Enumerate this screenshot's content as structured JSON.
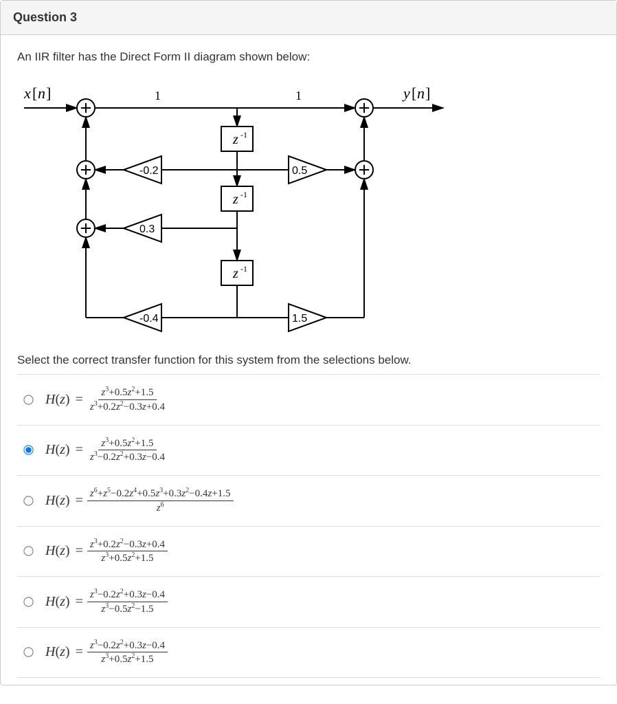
{
  "colors": {
    "border": "#cccccc",
    "header_bg": "#f5f5f5",
    "divider": "#dddddd",
    "text": "#333333"
  },
  "question": {
    "title": "Question 3",
    "prompt": "An IIR filter has the Direct Form II diagram shown below:",
    "select_text": "Select the correct transfer function for this system from the selections below."
  },
  "diagram": {
    "input_label": "x[n]",
    "output_label": "y[n]",
    "top_gains": [
      "1",
      "1"
    ],
    "delay_label": "z",
    "delay_exp": "-1",
    "left_gains": [
      "-0.2",
      "0.3",
      "-0.4"
    ],
    "right_gains": [
      "0.5",
      "",
      "1.5"
    ],
    "stroke": "#000000",
    "stroke_width": 2
  },
  "options": [
    {
      "id": "opt1",
      "selected": false,
      "numerator": "<i>z</i><sup>3</sup>+0.5<i>z</i><sup>2</sup>+1.5",
      "denominator": "<i>z</i><sup>3</sup>+0.2<i>z</i><sup>2</sup>−0.3<i>z</i>+0.4"
    },
    {
      "id": "opt2",
      "selected": true,
      "numerator": "<i>z</i><sup>3</sup>+0.5<i>z</i><sup>2</sup>+1.5",
      "denominator": "<i>z</i><sup>3</sup>−0.2<i>z</i><sup>2</sup>+0.3<i>z</i>−0.4"
    },
    {
      "id": "opt3",
      "selected": false,
      "numerator": "<i>z</i><sup>6</sup>+<i>z</i><sup>5</sup>−0.2<i>z</i><sup>4</sup>+0.5<i>z</i><sup>3</sup>+0.3<i>z</i><sup>2</sup>−0.4<i>z</i>+1.5",
      "denominator": "<i>z</i><sup>6</sup>"
    },
    {
      "id": "opt4",
      "selected": false,
      "numerator": "<i>z</i><sup>3</sup>+0.2<i>z</i><sup>2</sup>−0.3<i>z</i>+0.4",
      "denominator": "<i>z</i><sup>3</sup>+0.5<i>z</i><sup>2</sup>+1.5"
    },
    {
      "id": "opt5",
      "selected": false,
      "numerator": "<i>z</i><sup>3</sup>−0.2<i>z</i><sup>2</sup>+0.3<i>z</i>−0.4",
      "denominator": "<i>z</i><sup>3</sup>−0.5<i>z</i><sup>2</sup>−1.5"
    },
    {
      "id": "opt6",
      "selected": false,
      "numerator": "<i>z</i><sup>3</sup>−0.2<i>z</i><sup>2</sup>+0.3<i>z</i>−0.4",
      "denominator": "<i>z</i><sup>3</sup>+0.5<i>z</i><sup>2</sup>+1.5"
    }
  ]
}
